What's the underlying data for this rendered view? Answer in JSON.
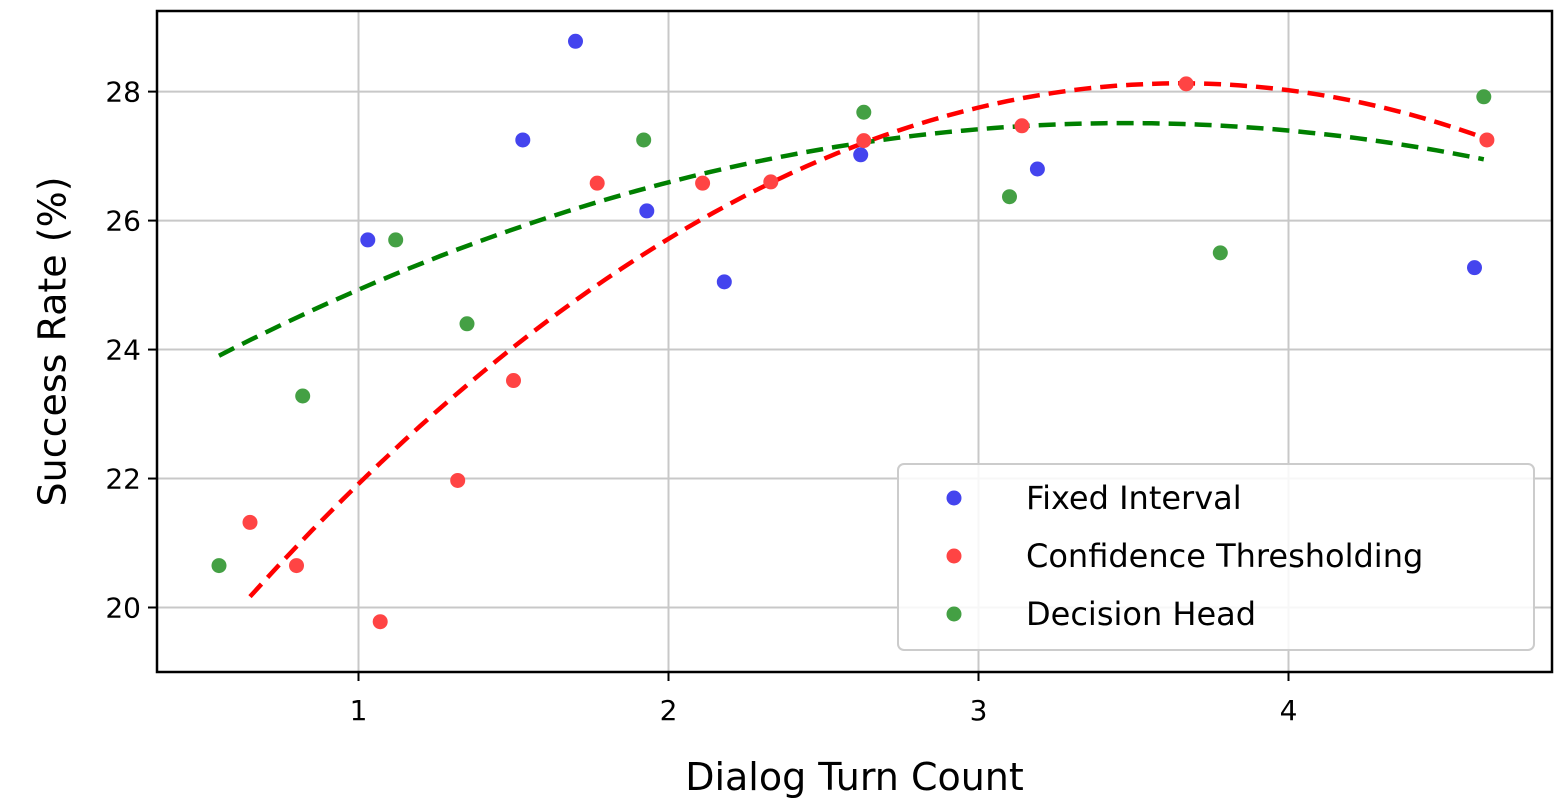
{
  "chart_data": {
    "type": "scatter",
    "title": "",
    "xlabel": "Dialog Turn Count",
    "ylabel": "Success Rate (%)",
    "xlim": [
      0.35,
      4.85
    ],
    "ylim": [
      19.0,
      29.25
    ],
    "xticks": [
      1,
      2,
      3,
      4
    ],
    "yticks": [
      20,
      22,
      24,
      26,
      28
    ],
    "grid": true,
    "legend_position": "lower-right",
    "series": [
      {
        "name": "Fixed Interval",
        "color": "#4444ee",
        "points": [
          [
            1.03,
            25.7
          ],
          [
            1.53,
            27.25
          ],
          [
            1.7,
            28.78
          ],
          [
            1.93,
            26.15
          ],
          [
            2.18,
            25.05
          ],
          [
            2.62,
            27.02
          ],
          [
            3.19,
            26.8
          ],
          [
            4.6,
            25.27
          ]
        ]
      },
      {
        "name": "Confidence Thresholding",
        "color": "#ff4444",
        "points": [
          [
            0.65,
            21.32
          ],
          [
            0.8,
            20.65
          ],
          [
            1.07,
            19.78
          ],
          [
            1.32,
            21.97
          ],
          [
            1.5,
            23.52
          ],
          [
            1.77,
            26.58
          ],
          [
            2.11,
            26.58
          ],
          [
            2.33,
            26.6
          ],
          [
            2.63,
            27.24
          ],
          [
            3.14,
            27.47
          ],
          [
            3.67,
            28.12
          ],
          [
            4.64,
            27.25
          ]
        ],
        "trend": {
          "color": "#ff0000",
          "x_range": [
            0.65,
            4.64
          ],
          "coefficients": [
            -0.883,
            6.45,
            16.35
          ]
        }
      },
      {
        "name": "Decision Head",
        "color": "#44a044",
        "points": [
          [
            0.55,
            20.65
          ],
          [
            0.82,
            23.28
          ],
          [
            1.12,
            25.7
          ],
          [
            1.35,
            24.4
          ],
          [
            1.92,
            27.25
          ],
          [
            2.63,
            27.68
          ],
          [
            3.1,
            26.37
          ],
          [
            3.78,
            25.5
          ],
          [
            4.63,
            27.92
          ]
        ],
        "trend": {
          "color": "#008000",
          "x_range": [
            0.55,
            4.63
          ],
          "coefficients": [
            -0.4215,
            2.93,
            22.42
          ]
        }
      }
    ]
  }
}
